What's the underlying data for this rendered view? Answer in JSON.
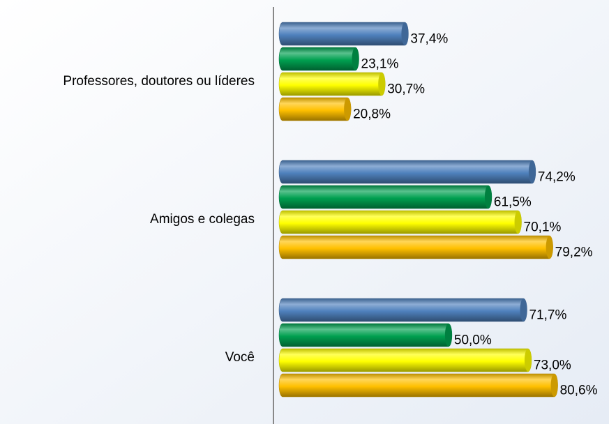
{
  "chart_data": {
    "type": "bar",
    "orientation": "horizontal",
    "categories": [
      "Professores, doutores ou líderes",
      "Amigos e colegas",
      "Você"
    ],
    "series": [
      {
        "color": "#4f81bd",
        "values": [
          37.4,
          74.2,
          71.7
        ],
        "value_labels": [
          "37,4%",
          "74,2%",
          "71,7%"
        ]
      },
      {
        "color": "#00a050",
        "values": [
          23.1,
          61.5,
          50.0
        ],
        "value_labels": [
          "23,1%",
          "61,5%",
          "50,0%"
        ]
      },
      {
        "color": "#ffff00",
        "values": [
          30.7,
          70.1,
          73.0
        ],
        "value_labels": [
          "30,7%",
          "70,1%",
          "73,0%"
        ]
      },
      {
        "color": "#ffc000",
        "values": [
          20.8,
          79.2,
          80.6
        ],
        "value_labels": [
          "20,8%",
          "79,2%",
          "80,6%"
        ]
      }
    ],
    "xlim": [
      0,
      95
    ]
  }
}
